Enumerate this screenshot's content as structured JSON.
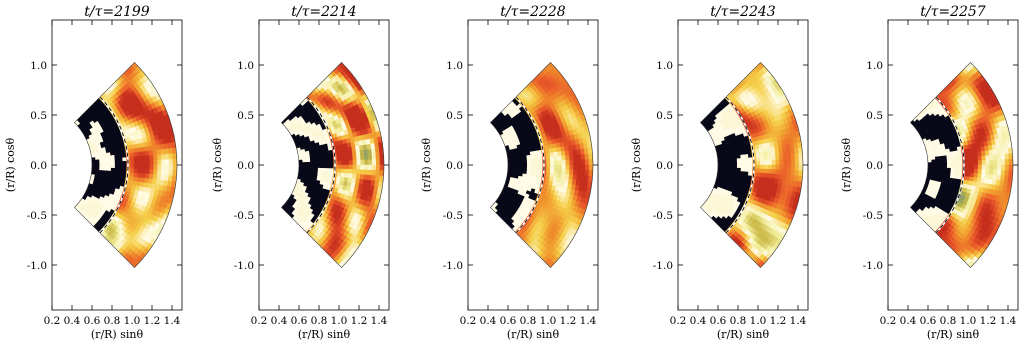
{
  "chart_data": {
    "type": "heatmap",
    "panels": [
      {
        "time": "2199",
        "title_prefix": "t/τ=",
        "seed": 3
      },
      {
        "time": "2214",
        "title_prefix": "t/τ=",
        "seed": 11
      },
      {
        "time": "2228",
        "title_prefix": "t/τ=",
        "seed": 19
      },
      {
        "time": "2243",
        "title_prefix": "t/τ=",
        "seed": 27
      },
      {
        "time": "2257",
        "title_prefix": "t/τ=",
        "seed": 35
      }
    ],
    "xlabel": "(r/R) sinθ",
    "ylabel": "(r/R) cosθ",
    "xlim": [
      0.2,
      1.5
    ],
    "ylim": [
      -1.45,
      1.45
    ],
    "xticks": [
      "0.2",
      "0.4",
      "0.6",
      "0.8",
      "1.0",
      "1.2",
      "1.4"
    ],
    "yticks": [
      "-1.0",
      "-0.5",
      "0.0",
      "0.5",
      "1.0"
    ],
    "domain": {
      "inner_radius": 0.6,
      "outer_radius": 1.45,
      "interface_radius": 0.96,
      "theta_min_deg": 45,
      "theta_max_deg": 135
    },
    "colormap": [
      "#000000",
      "#2a2f7a",
      "#5b68c8",
      "#9aa85a",
      "#cbb948",
      "#f2ee9a",
      "#fffbe6",
      "#f5d04a",
      "#f19a2e",
      "#ea5a2a",
      "#c62f1d"
    ],
    "grid": false,
    "legend": "none"
  }
}
